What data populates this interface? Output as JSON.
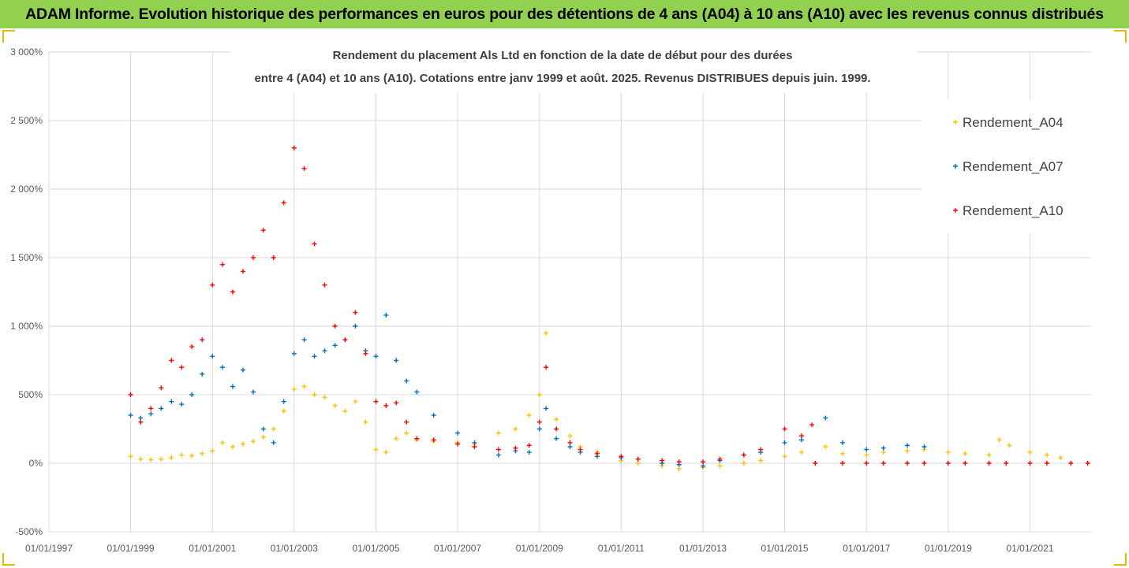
{
  "banner": {
    "title": "ADAM Informe. Evolution historique des performances en euros pour des détentions de 4 ans (A04) à 10 ans (A10) avec les revenus connus distribués"
  },
  "chart_data": {
    "type": "scatter",
    "title_line1": "Rendement du placement Als Ltd en fonction de la date de début pour des durées",
    "title_line2": "entre 4 (A04) et 10 ans (A10). Cotations entre janv 1999 et août. 2025. Revenus DISTRIBUES depuis juin. 1999.",
    "xlim": [
      "1997-01-01",
      "2022-07-01"
    ],
    "ylim": [
      -500,
      3000
    ],
    "y_unit": "%",
    "y_ticks": [
      "3 000%",
      "2 500%",
      "2 000%",
      "1 500%",
      "1 000%",
      "500%",
      "0%",
      "-500%"
    ],
    "x_ticks": [
      "01/01/1997",
      "01/01/1999",
      "01/01/2001",
      "01/01/2003",
      "01/01/2005",
      "01/01/2007",
      "01/01/2009",
      "01/01/2011",
      "01/01/2013",
      "01/01/2015",
      "01/01/2017",
      "01/01/2019",
      "01/01/2021"
    ],
    "grid": true,
    "legend": "right",
    "marker": "+",
    "series": [
      {
        "name": "Rendement_A04",
        "color": "#ffc000",
        "points": [
          [
            "1999-01-01",
            50
          ],
          [
            "1999-04-01",
            30
          ],
          [
            "1999-07-01",
            25
          ],
          [
            "1999-10-01",
            30
          ],
          [
            "2000-01-01",
            40
          ],
          [
            "2000-04-01",
            60
          ],
          [
            "2000-07-01",
            55
          ],
          [
            "2000-10-01",
            70
          ],
          [
            "2001-01-01",
            90
          ],
          [
            "2001-04-01",
            150
          ],
          [
            "2001-07-01",
            120
          ],
          [
            "2001-10-01",
            140
          ],
          [
            "2002-01-01",
            160
          ],
          [
            "2002-04-01",
            190
          ],
          [
            "2002-07-01",
            250
          ],
          [
            "2002-10-01",
            380
          ],
          [
            "2003-01-01",
            540
          ],
          [
            "2003-04-01",
            560
          ],
          [
            "2003-07-01",
            500
          ],
          [
            "2003-10-01",
            480
          ],
          [
            "2004-01-01",
            420
          ],
          [
            "2004-04-01",
            380
          ],
          [
            "2004-07-01",
            450
          ],
          [
            "2004-10-01",
            300
          ],
          [
            "2005-01-01",
            100
          ],
          [
            "2005-04-01",
            80
          ],
          [
            "2005-07-01",
            180
          ],
          [
            "2005-10-01",
            220
          ],
          [
            "2006-01-01",
            170
          ],
          [
            "2006-06-01",
            160
          ],
          [
            "2007-01-01",
            150
          ],
          [
            "2007-06-01",
            140
          ],
          [
            "2008-01-01",
            220
          ],
          [
            "2008-06-01",
            250
          ],
          [
            "2008-10-01",
            350
          ],
          [
            "2009-01-01",
            500
          ],
          [
            "2009-03-01",
            950
          ],
          [
            "2009-06-01",
            320
          ],
          [
            "2009-10-01",
            200
          ],
          [
            "2010-01-01",
            120
          ],
          [
            "2010-06-01",
            80
          ],
          [
            "2011-01-01",
            20
          ],
          [
            "2011-06-01",
            0
          ],
          [
            "2012-01-01",
            -20
          ],
          [
            "2012-06-01",
            -40
          ],
          [
            "2013-01-01",
            -30
          ],
          [
            "2013-06-01",
            -20
          ],
          [
            "2014-01-01",
            0
          ],
          [
            "2014-06-01",
            20
          ],
          [
            "2015-01-01",
            50
          ],
          [
            "2015-06-01",
            80
          ],
          [
            "2016-01-01",
            120
          ],
          [
            "2016-06-01",
            70
          ],
          [
            "2017-01-01",
            60
          ],
          [
            "2017-06-01",
            80
          ],
          [
            "2018-01-01",
            90
          ],
          [
            "2018-06-01",
            100
          ],
          [
            "2019-01-01",
            80
          ],
          [
            "2019-06-01",
            70
          ],
          [
            "2020-01-01",
            60
          ],
          [
            "2020-04-01",
            170
          ],
          [
            "2020-07-01",
            130
          ],
          [
            "2021-01-01",
            80
          ],
          [
            "2021-06-01",
            60
          ],
          [
            "2021-10-01",
            40
          ]
        ]
      },
      {
        "name": "Rendement_A07",
        "color": "#0070c0",
        "points": [
          [
            "1999-01-01",
            350
          ],
          [
            "1999-04-01",
            330
          ],
          [
            "1999-07-01",
            360
          ],
          [
            "1999-10-01",
            400
          ],
          [
            "2000-01-01",
            450
          ],
          [
            "2000-04-01",
            430
          ],
          [
            "2000-07-01",
            500
          ],
          [
            "2000-10-01",
            650
          ],
          [
            "2001-01-01",
            780
          ],
          [
            "2001-04-01",
            700
          ],
          [
            "2001-07-01",
            560
          ],
          [
            "2001-10-01",
            680
          ],
          [
            "2002-01-01",
            520
          ],
          [
            "2002-04-01",
            250
          ],
          [
            "2002-07-01",
            150
          ],
          [
            "2002-10-01",
            450
          ],
          [
            "2003-01-01",
            800
          ],
          [
            "2003-04-01",
            900
          ],
          [
            "2003-07-01",
            780
          ],
          [
            "2003-10-01",
            820
          ],
          [
            "2004-01-01",
            860
          ],
          [
            "2004-04-01",
            900
          ],
          [
            "2004-07-01",
            1000
          ],
          [
            "2004-10-01",
            820
          ],
          [
            "2005-01-01",
            780
          ],
          [
            "2005-04-01",
            1080
          ],
          [
            "2005-07-01",
            750
          ],
          [
            "2005-10-01",
            600
          ],
          [
            "2006-01-01",
            520
          ],
          [
            "2006-06-01",
            350
          ],
          [
            "2007-01-01",
            220
          ],
          [
            "2007-06-01",
            150
          ],
          [
            "2008-01-01",
            60
          ],
          [
            "2008-06-01",
            90
          ],
          [
            "2008-10-01",
            80
          ],
          [
            "2009-01-01",
            250
          ],
          [
            "2009-03-01",
            400
          ],
          [
            "2009-06-01",
            180
          ],
          [
            "2009-10-01",
            120
          ],
          [
            "2010-01-01",
            80
          ],
          [
            "2010-06-01",
            50
          ],
          [
            "2011-01-01",
            40
          ],
          [
            "2011-06-01",
            30
          ],
          [
            "2012-01-01",
            0
          ],
          [
            "2012-06-01",
            -10
          ],
          [
            "2013-01-01",
            -20
          ],
          [
            "2013-06-01",
            20
          ],
          [
            "2014-01-01",
            60
          ],
          [
            "2014-06-01",
            80
          ],
          [
            "2015-01-01",
            150
          ],
          [
            "2015-06-01",
            170
          ],
          [
            "2016-01-01",
            330
          ],
          [
            "2016-06-01",
            150
          ],
          [
            "2017-01-01",
            100
          ],
          [
            "2017-06-01",
            110
          ],
          [
            "2018-01-01",
            130
          ],
          [
            "2018-06-01",
            120
          ]
        ]
      },
      {
        "name": "Rendement_A10",
        "color": "#ff0000",
        "points": [
          [
            "1999-01-01",
            500
          ],
          [
            "1999-04-01",
            300
          ],
          [
            "1999-07-01",
            400
          ],
          [
            "1999-10-01",
            550
          ],
          [
            "2000-01-01",
            750
          ],
          [
            "2000-04-01",
            700
          ],
          [
            "2000-07-01",
            850
          ],
          [
            "2000-10-01",
            900
          ],
          [
            "2001-01-01",
            1300
          ],
          [
            "2001-04-01",
            1450
          ],
          [
            "2001-07-01",
            1250
          ],
          [
            "2001-10-01",
            1400
          ],
          [
            "2002-01-01",
            1500
          ],
          [
            "2002-04-01",
            1700
          ],
          [
            "2002-07-01",
            1500
          ],
          [
            "2002-10-01",
            1900
          ],
          [
            "2003-01-01",
            2300
          ],
          [
            "2003-04-01",
            2150
          ],
          [
            "2003-07-01",
            1600
          ],
          [
            "2003-10-01",
            1300
          ],
          [
            "2004-01-01",
            1000
          ],
          [
            "2004-04-01",
            900
          ],
          [
            "2004-07-01",
            1100
          ],
          [
            "2004-10-01",
            800
          ],
          [
            "2005-01-01",
            450
          ],
          [
            "2005-04-01",
            420
          ],
          [
            "2005-07-01",
            440
          ],
          [
            "2005-10-01",
            300
          ],
          [
            "2006-01-01",
            180
          ],
          [
            "2006-06-01",
            170
          ],
          [
            "2007-01-01",
            140
          ],
          [
            "2007-06-01",
            120
          ],
          [
            "2008-01-01",
            100
          ],
          [
            "2008-06-01",
            110
          ],
          [
            "2008-10-01",
            130
          ],
          [
            "2009-01-01",
            300
          ],
          [
            "2009-03-01",
            700
          ],
          [
            "2009-06-01",
            250
          ],
          [
            "2009-10-01",
            150
          ],
          [
            "2010-01-01",
            100
          ],
          [
            "2010-06-01",
            70
          ],
          [
            "2011-01-01",
            50
          ],
          [
            "2011-06-01",
            30
          ],
          [
            "2012-01-01",
            20
          ],
          [
            "2012-06-01",
            10
          ],
          [
            "2013-01-01",
            10
          ],
          [
            "2013-06-01",
            30
          ],
          [
            "2014-01-01",
            60
          ],
          [
            "2014-06-01",
            100
          ],
          [
            "2015-01-01",
            250
          ],
          [
            "2015-06-01",
            200
          ],
          [
            "2015-09-01",
            280
          ],
          [
            "2015-10-01",
            0
          ],
          [
            "2016-06-01",
            0
          ],
          [
            "2017-01-01",
            0
          ],
          [
            "2017-06-01",
            0
          ],
          [
            "2018-01-01",
            0
          ],
          [
            "2018-06-01",
            0
          ],
          [
            "2019-01-01",
            0
          ],
          [
            "2019-06-01",
            0
          ],
          [
            "2020-01-01",
            0
          ],
          [
            "2020-06-01",
            0
          ],
          [
            "2021-01-01",
            0
          ],
          [
            "2021-06-01",
            0
          ],
          [
            "2022-01-01",
            0
          ],
          [
            "2022-06-01",
            0
          ]
        ]
      }
    ]
  }
}
